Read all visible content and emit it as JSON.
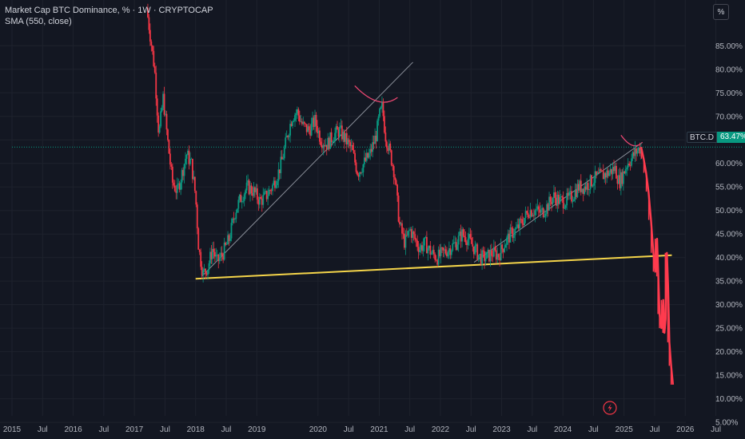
{
  "legend": {
    "title": "Market Cap BTC Dominance, % · 1W · CRYPTOCAP",
    "indicator": "SMA (550, close)"
  },
  "scale_button": {
    "label": "%"
  },
  "price_tag": {
    "symbol": "BTC.D",
    "value": "63.47%"
  },
  "colors": {
    "background": "#131722",
    "up": "#089981",
    "down": "#f23645",
    "projection": "#ff3b4e",
    "support_line": "#f5d54a",
    "trend_line": "#8a8f99",
    "arc": "#e84670",
    "grid": "#1e222d",
    "axis_text": "#b2b5be"
  },
  "icons": {
    "lightning": "lightning-icon"
  },
  "chart_data": {
    "type": "candlestick",
    "title": "Market Cap BTC Dominance, % · 1W · CRYPTOCAP",
    "y_unit": "%",
    "ylim": [
      4,
      92
    ],
    "xlim": [
      2015.0,
      2026.95
    ],
    "y_ticks": [
      "85.00%",
      "80.00%",
      "75.00%",
      "70.00%",
      "65.00%",
      "60.00%",
      "55.00%",
      "50.00%",
      "45.00%",
      "40.00%",
      "35.00%",
      "30.00%",
      "25.00%",
      "20.00%",
      "15.00%",
      "10.00%",
      "5.00%"
    ],
    "y_tick_values": [
      85,
      80,
      75,
      70,
      65,
      60,
      55,
      50,
      45,
      40,
      35,
      30,
      25,
      20,
      15,
      10,
      5
    ],
    "x_ticks": [
      {
        "label": "2015",
        "t": 2015.0
      },
      {
        "label": "Jul",
        "t": 2015.5
      },
      {
        "label": "2016",
        "t": 2016.0
      },
      {
        "label": "Jul",
        "t": 2016.5
      },
      {
        "label": "2017",
        "t": 2017.0
      },
      {
        "label": "Jul",
        "t": 2017.5
      },
      {
        "label": "2018",
        "t": 2018.0
      },
      {
        "label": "Jul",
        "t": 2018.5
      },
      {
        "label": "2019",
        "t": 2019.0
      },
      {
        "label": "2020",
        "t": 2020.0
      },
      {
        "label": "Jul",
        "t": 2020.5
      },
      {
        "label": "2021",
        "t": 2021.0
      },
      {
        "label": "Jul",
        "t": 2021.5
      },
      {
        "label": "2022",
        "t": 2022.0
      },
      {
        "label": "Jul",
        "t": 2022.5
      },
      {
        "label": "2023",
        "t": 2023.0
      },
      {
        "label": "Jul",
        "t": 2023.5
      },
      {
        "label": "2024",
        "t": 2024.0
      },
      {
        "label": "Jul",
        "t": 2024.5
      },
      {
        "label": "2025",
        "t": 2025.0
      },
      {
        "label": "Jul",
        "t": 2025.5
      },
      {
        "label": "2026",
        "t": 2026.0
      },
      {
        "label": "Jul",
        "t": 2026.5
      }
    ],
    "series": [
      {
        "name": "BTC.D",
        "kind": "price",
        "points": [
          [
            2017.2,
            93
          ],
          [
            2017.27,
            86
          ],
          [
            2017.33,
            80
          ],
          [
            2017.4,
            66
          ],
          [
            2017.47,
            74
          ],
          [
            2017.55,
            64
          ],
          [
            2017.62,
            56
          ],
          [
            2017.7,
            54
          ],
          [
            2017.78,
            58
          ],
          [
            2017.85,
            62
          ],
          [
            2017.93,
            60
          ],
          [
            2018.0,
            53
          ],
          [
            2018.05,
            42
          ],
          [
            2018.12,
            36.5
          ],
          [
            2018.2,
            38
          ],
          [
            2018.28,
            42
          ],
          [
            2018.35,
            39
          ],
          [
            2018.45,
            41
          ],
          [
            2018.55,
            44
          ],
          [
            2018.65,
            50
          ],
          [
            2018.75,
            53
          ],
          [
            2018.85,
            55
          ],
          [
            2018.95,
            54
          ],
          [
            2019.05,
            52
          ],
          [
            2019.15,
            53
          ],
          [
            2019.25,
            55
          ],
          [
            2019.35,
            58
          ],
          [
            2019.42,
            61
          ],
          [
            2019.5,
            66
          ],
          [
            2019.58,
            70
          ],
          [
            2019.66,
            71
          ],
          [
            2019.75,
            68
          ],
          [
            2019.85,
            67
          ],
          [
            2019.95,
            69
          ],
          [
            2020.05,
            65
          ],
          [
            2020.15,
            64
          ],
          [
            2020.25,
            66
          ],
          [
            2020.35,
            67
          ],
          [
            2020.45,
            65
          ],
          [
            2020.55,
            63
          ],
          [
            2020.65,
            58
          ],
          [
            2020.75,
            60
          ],
          [
            2020.85,
            62
          ],
          [
            2020.95,
            66
          ],
          [
            2021.0,
            70
          ],
          [
            2021.05,
            72
          ],
          [
            2021.1,
            66
          ],
          [
            2021.18,
            62
          ],
          [
            2021.25,
            58
          ],
          [
            2021.33,
            47
          ],
          [
            2021.42,
            43
          ],
          [
            2021.5,
            46
          ],
          [
            2021.58,
            44
          ],
          [
            2021.66,
            42
          ],
          [
            2021.75,
            43
          ],
          [
            2021.85,
            41
          ],
          [
            2021.95,
            40
          ],
          [
            2022.05,
            41
          ],
          [
            2022.15,
            42
          ],
          [
            2022.25,
            43
          ],
          [
            2022.35,
            45
          ],
          [
            2022.45,
            44
          ],
          [
            2022.55,
            42
          ],
          [
            2022.65,
            40
          ],
          [
            2022.75,
            40
          ],
          [
            2022.85,
            41
          ],
          [
            2022.95,
            40.5
          ],
          [
            2023.05,
            43
          ],
          [
            2023.15,
            45
          ],
          [
            2023.25,
            46
          ],
          [
            2023.35,
            48
          ],
          [
            2023.45,
            50
          ],
          [
            2023.55,
            50
          ],
          [
            2023.65,
            49.5
          ],
          [
            2023.75,
            51
          ],
          [
            2023.85,
            53
          ],
          [
            2023.95,
            52
          ],
          [
            2024.05,
            52
          ],
          [
            2024.15,
            53
          ],
          [
            2024.25,
            55
          ],
          [
            2024.35,
            55
          ],
          [
            2024.45,
            56
          ],
          [
            2024.55,
            57
          ],
          [
            2024.65,
            57.5
          ],
          [
            2024.75,
            58
          ],
          [
            2024.85,
            59
          ],
          [
            2024.92,
            56
          ],
          [
            2024.98,
            57.5
          ],
          [
            2025.05,
            60
          ],
          [
            2025.12,
            61
          ],
          [
            2025.2,
            62.5
          ],
          [
            2025.28,
            63.47
          ]
        ]
      },
      {
        "name": "",
        "kind": "projection",
        "points": [
          [
            2025.28,
            63.47
          ],
          [
            2025.32,
            61
          ],
          [
            2025.36,
            58
          ],
          [
            2025.4,
            54
          ],
          [
            2025.44,
            48
          ],
          [
            2025.48,
            41
          ],
          [
            2025.51,
            37
          ],
          [
            2025.54,
            44
          ],
          [
            2025.56,
            36
          ],
          [
            2025.58,
            28
          ],
          [
            2025.61,
            25
          ],
          [
            2025.64,
            31
          ],
          [
            2025.66,
            24
          ],
          [
            2025.68,
            27
          ],
          [
            2025.7,
            41
          ],
          [
            2025.72,
            34
          ],
          [
            2025.74,
            22
          ],
          [
            2025.77,
            17
          ],
          [
            2025.8,
            13
          ]
        ]
      }
    ],
    "annotations": [
      {
        "type": "line",
        "name": "support-trendline",
        "color": "#f5d54a",
        "from": [
          2018.0,
          35.5
        ],
        "to": [
          2025.78,
          40.5
        ]
      },
      {
        "type": "line",
        "name": "rising-trendline-2018",
        "color": "#8a8f99",
        "from": [
          2018.1,
          36
        ],
        "to": [
          2021.55,
          81.5
        ]
      },
      {
        "type": "line",
        "name": "rising-trendline-2022",
        "color": "#8a8f99",
        "from": [
          2022.55,
          39
        ],
        "to": [
          2025.25,
          64
        ]
      },
      {
        "type": "line",
        "name": "price-line",
        "color": "#089981",
        "from": [
          2015.0,
          63.47
        ],
        "to": [
          2026.95,
          63.47
        ],
        "dashed": true
      },
      {
        "type": "arc",
        "name": "top-arc-2021",
        "color": "#e84670",
        "from": [
          2020.6,
          76.5
        ],
        "peak": [
          2021.0,
          73.5
        ],
        "to": [
          2021.3,
          74
        ]
      },
      {
        "type": "arc",
        "name": "top-arc-2025",
        "color": "#e84670",
        "from": [
          2024.95,
          66
        ],
        "peak": [
          2025.15,
          64.8
        ],
        "to": [
          2025.3,
          64.5
        ]
      }
    ]
  }
}
